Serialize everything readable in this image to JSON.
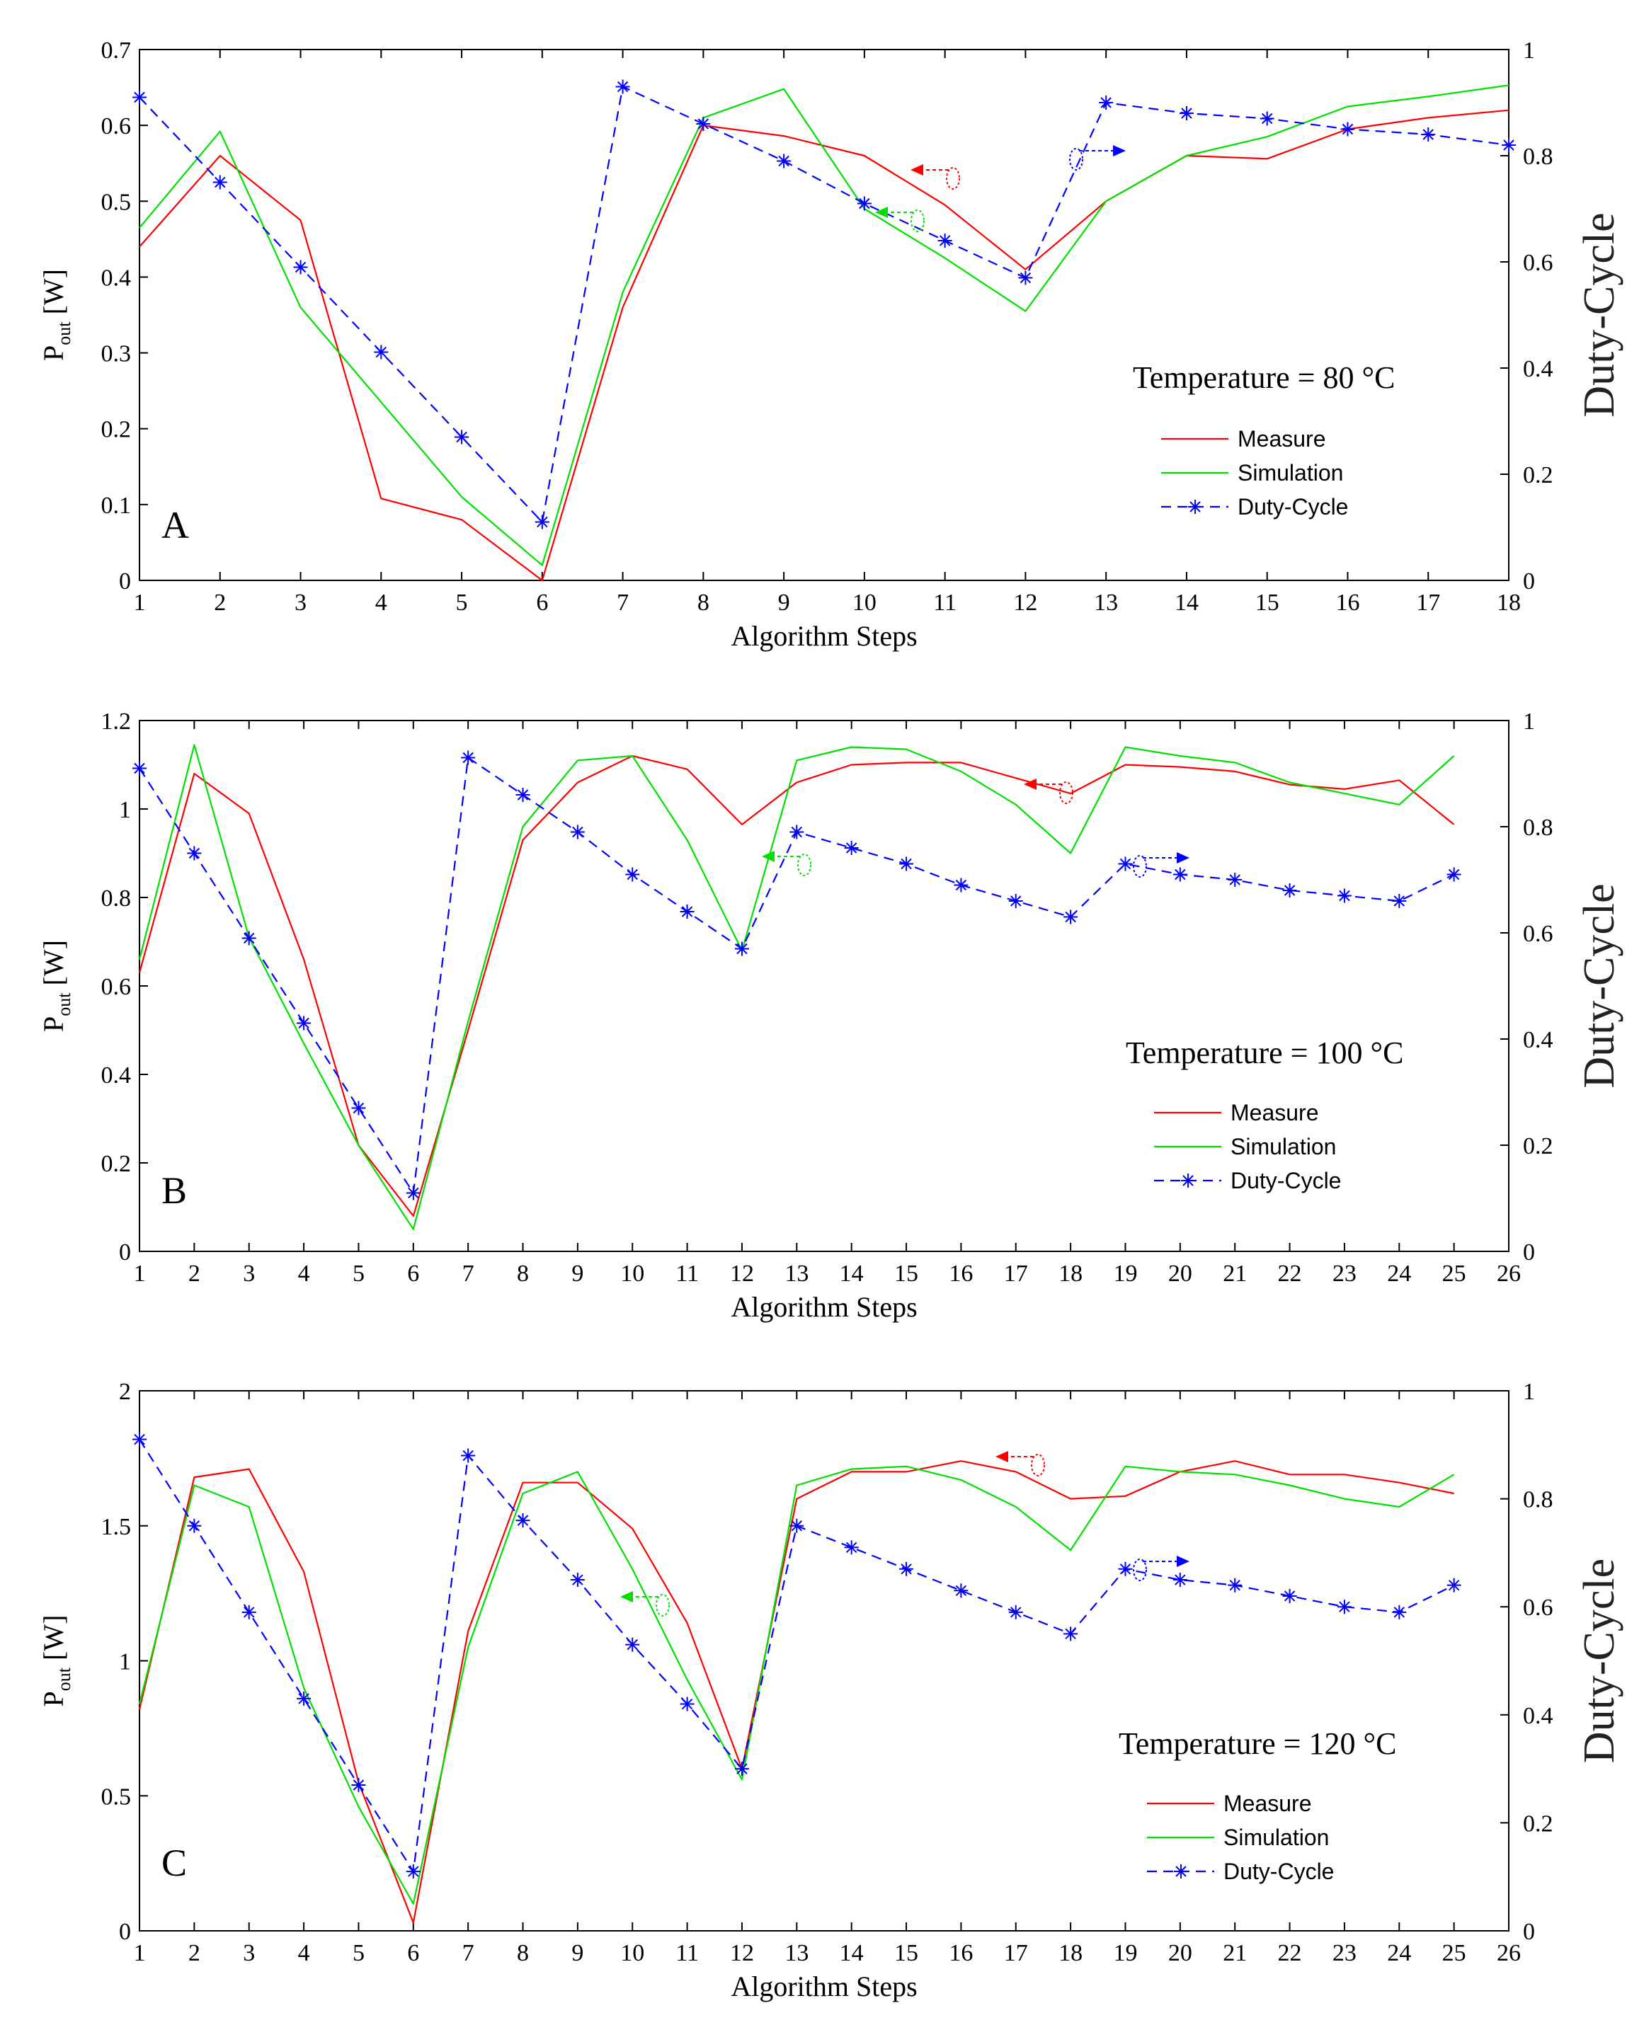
{
  "colors": {
    "measure": "#ff0000",
    "simulation": "#00e000",
    "duty": "#0000ff",
    "axis": "#000000"
  },
  "chart_data": [
    {
      "type": "line",
      "panel_label": "A",
      "annotation": "Temperature = 80 °C",
      "xlabel": "Algorithm Steps",
      "ylabel_main": "P",
      "ylabel_sub": "out",
      "ylabel_unit": " [W]",
      "y2label": "Duty-Cycle",
      "xlim": [
        1,
        18
      ],
      "xticks": [
        1,
        2,
        3,
        4,
        5,
        6,
        7,
        8,
        9,
        10,
        11,
        12,
        13,
        14,
        15,
        16,
        17,
        18
      ],
      "ylim": [
        0,
        0.7
      ],
      "yticks": [
        "0",
        "0.1",
        "0.2",
        "0.3",
        "0.4",
        "0.5",
        "0.6",
        "0.7"
      ],
      "y2lim": [
        0,
        1
      ],
      "y2ticks": [
        "0",
        "0.2",
        "0.4",
        "0.6",
        "0.8",
        "1"
      ],
      "legend": [
        "Measure",
        "Simulation",
        "Duty-Cycle"
      ],
      "series": [
        {
          "name": "Measure",
          "axis": "left",
          "x": [
            1,
            2,
            3,
            4,
            5,
            6,
            7,
            8,
            9,
            10,
            11,
            12,
            13,
            14,
            15,
            16,
            17,
            18
          ],
          "values": [
            0.44,
            0.56,
            0.475,
            0.108,
            0.08,
            0.0,
            0.36,
            0.6,
            0.586,
            0.56,
            0.495,
            0.41,
            0.5,
            0.56,
            0.556,
            0.595,
            0.61,
            0.62
          ]
        },
        {
          "name": "Simulation",
          "axis": "left",
          "x": [
            1,
            2,
            3,
            4,
            5,
            6,
            7,
            8,
            9,
            10,
            11,
            12,
            13,
            14,
            15,
            16,
            17,
            18
          ],
          "values": [
            0.465,
            0.592,
            0.36,
            0.235,
            0.11,
            0.02,
            0.38,
            0.61,
            0.648,
            0.49,
            0.425,
            0.355,
            0.5,
            0.56,
            0.585,
            0.625,
            0.638,
            0.653
          ]
        },
        {
          "name": "Duty-Cycle",
          "axis": "right",
          "x": [
            1,
            2,
            3,
            4,
            5,
            6,
            7,
            8,
            9,
            10,
            11,
            12,
            13,
            14,
            15,
            16,
            17,
            18
          ],
          "values": [
            0.91,
            0.75,
            0.59,
            0.43,
            0.27,
            0.11,
            0.93,
            0.86,
            0.79,
            0.71,
            0.64,
            0.57,
            0.9,
            0.88,
            0.87,
            0.85,
            0.84,
            0.82
          ]
        }
      ]
    },
    {
      "type": "line",
      "panel_label": "B",
      "annotation": "Temperature = 100 °C",
      "xlabel": "Algorithm Steps",
      "ylabel_main": "P",
      "ylabel_sub": "out",
      "ylabel_unit": " [W]",
      "y2label": "Duty-Cycle",
      "xlim": [
        1,
        26
      ],
      "xticks": [
        1,
        2,
        3,
        4,
        5,
        6,
        7,
        8,
        9,
        10,
        11,
        12,
        13,
        14,
        15,
        16,
        17,
        18,
        19,
        20,
        21,
        22,
        23,
        24,
        25,
        26
      ],
      "ylim": [
        0,
        1.2
      ],
      "yticks": [
        "0",
        "0.2",
        "0.4",
        "0.6",
        "0.8",
        "1",
        "1.2"
      ],
      "y2lim": [
        0,
        1
      ],
      "y2ticks": [
        "0",
        "0.2",
        "0.4",
        "0.6",
        "0.8",
        "1"
      ],
      "legend": [
        "Measure",
        "Simulation",
        "Duty-Cycle"
      ],
      "series": [
        {
          "name": "Measure",
          "axis": "left",
          "x": [
            1,
            2,
            3,
            4,
            5,
            6,
            7,
            8,
            9,
            10,
            11,
            12,
            13,
            14,
            15,
            16,
            17,
            18,
            19,
            20,
            21,
            22,
            23,
            24,
            25
          ],
          "values": [
            0.63,
            1.08,
            0.99,
            0.66,
            0.24,
            0.08,
            0.5,
            0.93,
            1.06,
            1.12,
            1.09,
            0.965,
            1.06,
            1.1,
            1.105,
            1.105,
            1.07,
            1.035,
            1.1,
            1.095,
            1.085,
            1.055,
            1.045,
            1.065,
            0.965
          ]
        },
        {
          "name": "Simulation",
          "axis": "left",
          "x": [
            1,
            2,
            3,
            4,
            5,
            6,
            7,
            8,
            9,
            10,
            11,
            12,
            13,
            14,
            15,
            16,
            17,
            18,
            19,
            20,
            21,
            22,
            23,
            24,
            25
          ],
          "values": [
            0.66,
            1.145,
            0.71,
            0.47,
            0.24,
            0.05,
            0.52,
            0.96,
            1.11,
            1.12,
            0.93,
            0.68,
            1.11,
            1.14,
            1.135,
            1.085,
            1.01,
            0.9,
            1.14,
            1.12,
            1.105,
            1.06,
            1.035,
            1.01,
            1.12
          ]
        },
        {
          "name": "Duty-Cycle",
          "axis": "right",
          "x": [
            1,
            2,
            3,
            4,
            5,
            6,
            7,
            8,
            9,
            10,
            11,
            12,
            13,
            14,
            15,
            16,
            17,
            18,
            19,
            20,
            21,
            22,
            23,
            24,
            25
          ],
          "values": [
            0.91,
            0.75,
            0.59,
            0.43,
            0.27,
            0.11,
            0.93,
            0.86,
            0.79,
            0.71,
            0.64,
            0.57,
            0.79,
            0.76,
            0.73,
            0.69,
            0.66,
            0.63,
            0.73,
            0.71,
            0.7,
            0.68,
            0.67,
            0.66,
            0.71
          ]
        }
      ]
    },
    {
      "type": "line",
      "panel_label": "C",
      "annotation": "Temperature = 120 °C",
      "xlabel": "Algorithm Steps",
      "ylabel_main": "P",
      "ylabel_sub": "out",
      "ylabel_unit": " [W]",
      "y2label": "Duty-Cycle",
      "xlim": [
        1,
        26
      ],
      "xticks": [
        1,
        2,
        3,
        4,
        5,
        6,
        7,
        8,
        9,
        10,
        11,
        12,
        13,
        14,
        15,
        16,
        17,
        18,
        19,
        20,
        21,
        22,
        23,
        24,
        25,
        26
      ],
      "ylim": [
        0,
        2
      ],
      "yticks": [
        "0",
        "0.5",
        "1",
        "1.5",
        "2"
      ],
      "y2lim": [
        0,
        1
      ],
      "y2ticks": [
        "0",
        "0.2",
        "0.4",
        "0.6",
        "0.8",
        "1"
      ],
      "legend": [
        "Measure",
        "Simulation",
        "Duty-Cycle"
      ],
      "series": [
        {
          "name": "Measure",
          "axis": "left",
          "x": [
            1,
            2,
            3,
            4,
            5,
            6,
            7,
            8,
            9,
            10,
            11,
            12,
            13,
            14,
            15,
            16,
            17,
            18,
            19,
            20,
            21,
            22,
            23,
            24,
            25
          ],
          "values": [
            0.82,
            1.68,
            1.71,
            1.33,
            0.55,
            0.03,
            1.11,
            1.66,
            1.66,
            1.49,
            1.14,
            0.6,
            1.6,
            1.7,
            1.7,
            1.74,
            1.7,
            1.6,
            1.61,
            1.7,
            1.74,
            1.69,
            1.69,
            1.66,
            1.62
          ]
        },
        {
          "name": "Simulation",
          "axis": "left",
          "x": [
            1,
            2,
            3,
            4,
            5,
            6,
            7,
            8,
            9,
            10,
            11,
            12,
            13,
            14,
            15,
            16,
            17,
            18,
            19,
            20,
            21,
            22,
            23,
            24,
            25
          ],
          "values": [
            0.84,
            1.65,
            1.57,
            0.9,
            0.46,
            0.1,
            1.05,
            1.62,
            1.7,
            1.34,
            0.93,
            0.56,
            1.65,
            1.71,
            1.72,
            1.67,
            1.57,
            1.41,
            1.72,
            1.7,
            1.69,
            1.65,
            1.6,
            1.57,
            1.69
          ]
        },
        {
          "name": "Duty-Cycle",
          "axis": "right",
          "x": [
            1,
            2,
            3,
            4,
            5,
            6,
            7,
            8,
            9,
            10,
            11,
            12,
            13,
            14,
            15,
            16,
            17,
            18,
            19,
            20,
            21,
            22,
            23,
            24,
            25
          ],
          "values": [
            0.91,
            0.75,
            0.59,
            0.43,
            0.27,
            0.11,
            0.88,
            0.76,
            0.65,
            0.53,
            0.42,
            0.3,
            0.75,
            0.71,
            0.67,
            0.63,
            0.59,
            0.55,
            0.67,
            0.65,
            0.64,
            0.62,
            0.6,
            0.59,
            0.64
          ]
        }
      ]
    }
  ]
}
